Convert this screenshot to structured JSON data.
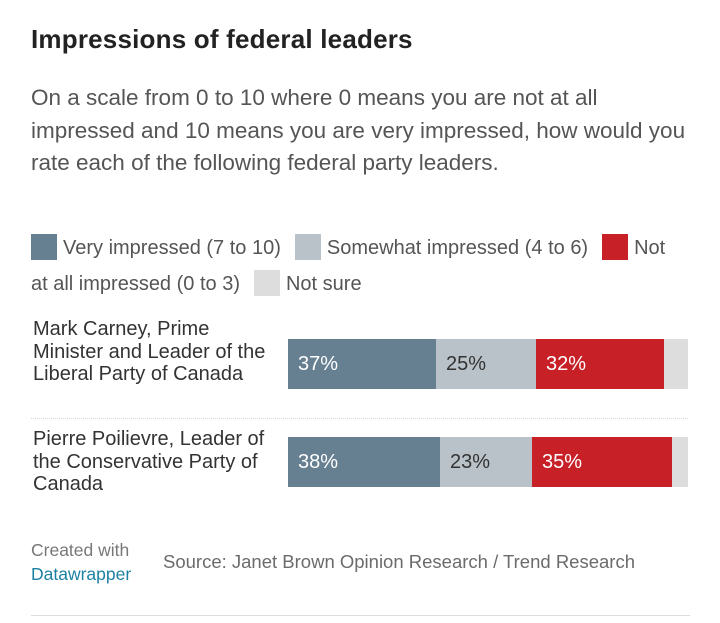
{
  "header": {
    "title": "Impressions of federal leaders",
    "subtitle": "On a scale from 0 to 10 where 0 means you are not at all impressed and 10 means you are very impressed, how would you rate each of the following federal party leaders."
  },
  "footer": {
    "created_with": "Created with",
    "brand": "Datawrapper",
    "source": "Source: Janet Brown Opinion Research / Trend Research"
  },
  "chart_data": {
    "type": "bar",
    "orientation": "horizontal",
    "stacked": true,
    "title": "Impressions of federal leaders",
    "xlabel": "",
    "ylabel": "",
    "xlim": [
      0,
      100
    ],
    "unit": "%",
    "grid": false,
    "legend_position": "top",
    "categories": [
      "Mark Carney, Prime Minister and Leader of the Liberal Party of Canada",
      "Pierre Poilievre, Leader of the Conservative Party of Canada"
    ],
    "series": [
      {
        "name": "Very impressed (7 to 10)",
        "color": "#667f91",
        "label_color": "#ffffff",
        "values": [
          37,
          38
        ],
        "labels": [
          "37%",
          "38%"
        ]
      },
      {
        "name": "Somewhat impressed (4 to 6)",
        "color": "#b9c2c8",
        "label_color": "#333333",
        "values": [
          25,
          23
        ],
        "labels": [
          "25%",
          "23%"
        ]
      },
      {
        "name": "Not at all impressed (0 to 3)",
        "color": "#c72027",
        "label_color": "#ffffff",
        "values": [
          32,
          35
        ],
        "labels": [
          "32%",
          "35%"
        ]
      },
      {
        "name": "Not sure",
        "color": "#dddddd",
        "label_color": "#333333",
        "values": [
          6,
          4
        ],
        "labels": [
          "",
          ""
        ]
      }
    ]
  }
}
